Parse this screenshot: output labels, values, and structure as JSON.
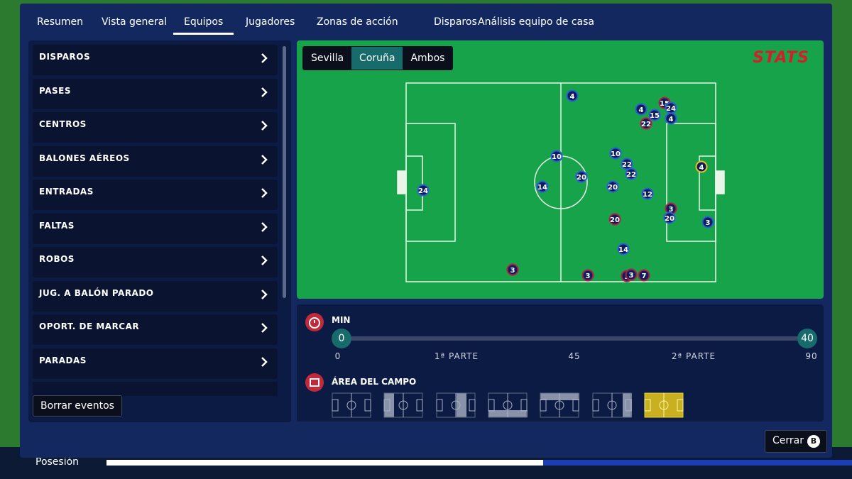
{
  "background": {
    "possession_label": "Posesión"
  },
  "tabs": {
    "items": [
      "Resumen",
      "Vista general",
      "Equipos",
      "Jugadores",
      "Zonas de acción",
      "Disparos",
      "Análisis equipo de casa"
    ],
    "active": 2
  },
  "menu": {
    "items": [
      "DISPAROS",
      "PASES",
      "CENTROS",
      "BALONES AÉREOS",
      "ENTRADAS",
      "FALTAS",
      "ROBOS",
      "JUG. A BALÓN PARADO",
      "OPORT. DE MARCAR",
      "PARADAS"
    ],
    "clear_button": "Borrar eventos"
  },
  "pitch": {
    "teams": [
      "Sevilla",
      "Coruña",
      "Ambos"
    ],
    "active_team": 1,
    "brand": "STATS",
    "markers": [
      "4",
      "15",
      "24",
      "4",
      "15",
      "4",
      "22",
      "10",
      "10",
      "22",
      "22",
      "20",
      "14",
      "20",
      "24",
      "12",
      "4",
      "3",
      "20",
      "3",
      "20",
      "14",
      "3",
      "3",
      "3",
      "3",
      "7"
    ]
  },
  "timeline": {
    "title": "MIN",
    "start_handle": "0",
    "end_handle": "40",
    "tick_labels": [
      "0",
      "1ª PARTE",
      "45",
      "2ª PARTE",
      "90"
    ]
  },
  "area": {
    "title": "ÁREA DEL CAMPO",
    "active_zone": 6
  },
  "footer": {
    "close_button": "Cerrar",
    "close_key": "B"
  }
}
